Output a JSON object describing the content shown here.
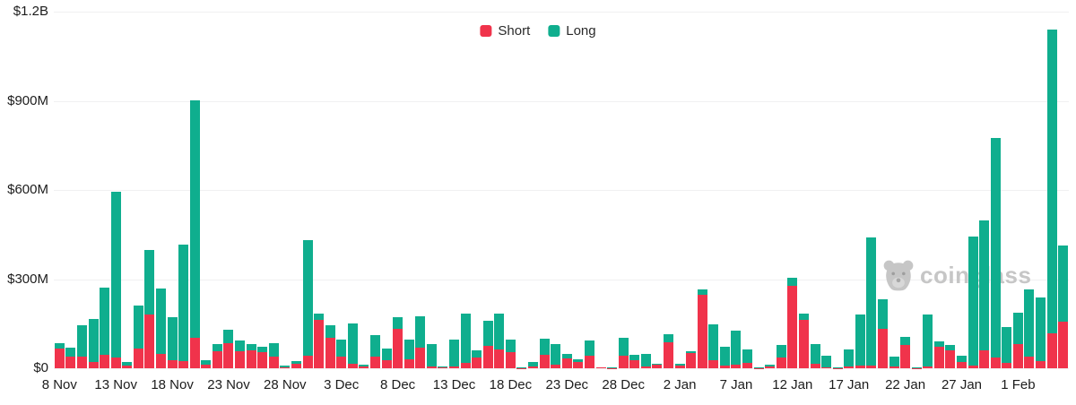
{
  "chart_data": {
    "type": "bar",
    "stacked": true,
    "title": "",
    "xlabel": "",
    "ylabel": "",
    "unit": "USD millions",
    "ylim": [
      0,
      1200
    ],
    "grid": true,
    "legend_position": "top-center",
    "y_axis": {
      "tick_values": [
        0,
        300,
        600,
        900,
        1200
      ],
      "tick_labels": [
        "$0",
        "$300M",
        "$600M",
        "$900M",
        "$1.2B"
      ]
    },
    "x_tick_labels": [
      "8 Nov",
      "13 Nov",
      "18 Nov",
      "23 Nov",
      "28 Nov",
      "3 Dec",
      "8 Dec",
      "13 Dec",
      "18 Dec",
      "23 Dec",
      "28 Dec",
      "2 Jan",
      "7 Jan",
      "12 Jan",
      "17 Jan",
      "22 Jan",
      "27 Jan",
      "1 Feb"
    ],
    "tick_every": 5,
    "categories": [
      "8 Nov",
      "9 Nov",
      "10 Nov",
      "11 Nov",
      "12 Nov",
      "13 Nov",
      "14 Nov",
      "15 Nov",
      "16 Nov",
      "17 Nov",
      "18 Nov",
      "19 Nov",
      "20 Nov",
      "21 Nov",
      "22 Nov",
      "23 Nov",
      "24 Nov",
      "25 Nov",
      "26 Nov",
      "27 Nov",
      "28 Nov",
      "29 Nov",
      "30 Nov",
      "1 Dec",
      "2 Dec",
      "3 Dec",
      "4 Dec",
      "5 Dec",
      "6 Dec",
      "7 Dec",
      "8 Dec",
      "9 Dec",
      "10 Dec",
      "11 Dec",
      "12 Dec",
      "13 Dec",
      "14 Dec",
      "15 Dec",
      "16 Dec",
      "17 Dec",
      "18 Dec",
      "19 Dec",
      "20 Dec",
      "21 Dec",
      "22 Dec",
      "23 Dec",
      "24 Dec",
      "25 Dec",
      "26 Dec",
      "27 Dec",
      "28 Dec",
      "29 Dec",
      "30 Dec",
      "31 Dec",
      "1 Jan",
      "2 Jan",
      "3 Jan",
      "4 Jan",
      "5 Jan",
      "6 Jan",
      "7 Jan",
      "8 Jan",
      "9 Jan",
      "10 Jan",
      "11 Jan",
      "12 Jan",
      "13 Jan",
      "14 Jan",
      "15 Jan",
      "16 Jan",
      "17 Jan",
      "18 Jan",
      "19 Jan",
      "20 Jan",
      "21 Jan",
      "22 Jan",
      "23 Jan",
      "24 Jan",
      "25 Jan",
      "26 Jan",
      "27 Jan",
      "28 Jan",
      "29 Jan",
      "30 Jan",
      "31 Jan",
      "1 Feb",
      "2 Feb",
      "3 Feb",
      "4 Feb",
      "5 Feb"
    ],
    "series": [
      {
        "name": "Short",
        "color": "#F0334B",
        "values": [
          65,
          38,
          38,
          22,
          44,
          35,
          8,
          65,
          181,
          47,
          27,
          24,
          103,
          12,
          57,
          85,
          57,
          61,
          55,
          40,
          4,
          14,
          43,
          163,
          101,
          39,
          15,
          5,
          38,
          27,
          134,
          29,
          69,
          5,
          2,
          6,
          17,
          36,
          75,
          62,
          54,
          1,
          6,
          46,
          11,
          33,
          21,
          42,
          2,
          1,
          42,
          26,
          6,
          11,
          87,
          9,
          52,
          248,
          28,
          8,
          13,
          17,
          1,
          6,
          37,
          278,
          162,
          14,
          3,
          1,
          5,
          8,
          10,
          132,
          7,
          78,
          1,
          5,
          73,
          61,
          20,
          10,
          60,
          35,
          18,
          82,
          38,
          23,
          118,
          158
        ]
      },
      {
        "name": "Long",
        "color": "#0FAE8E",
        "values": [
          18,
          32,
          107,
          143,
          226,
          560,
          14,
          146,
          217,
          220,
          144,
          393,
          799,
          15,
          23,
          46,
          35,
          21,
          16,
          45,
          5,
          9,
          389,
          21,
          44,
          57,
          137,
          6,
          74,
          39,
          39,
          66,
          106,
          76,
          3,
          92,
          166,
          23,
          86,
          122,
          42,
          1,
          16,
          55,
          69,
          15,
          8,
          51,
          2,
          1,
          61,
          20,
          43,
          3,
          28,
          7,
          5,
          16,
          120,
          63,
          113,
          47,
          1,
          5,
          40,
          27,
          22,
          68,
          38,
          1,
          57,
          172,
          429,
          100,
          32,
          28,
          1,
          175,
          17,
          18,
          21,
          433,
          436,
          739,
          120,
          104,
          227,
          215,
          1021,
          255
        ]
      }
    ]
  },
  "legend": {
    "short_label": "Short",
    "long_label": "Long"
  },
  "watermark": {
    "text": "coinglass"
  }
}
